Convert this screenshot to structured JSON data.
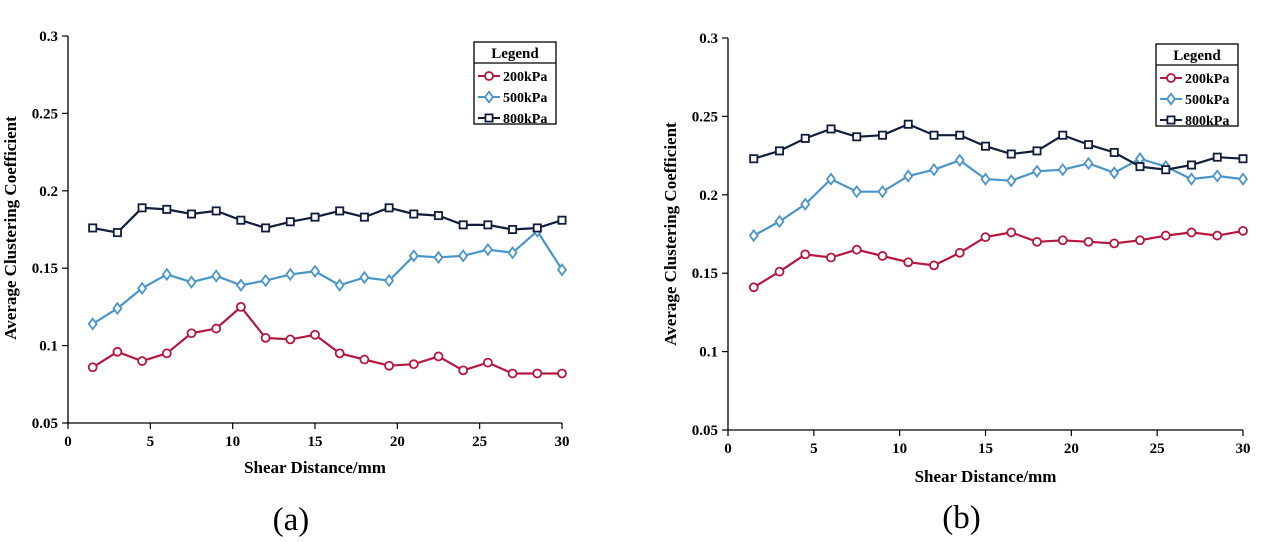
{
  "chart_data": [
    {
      "type": "line",
      "panel_label": "(a)",
      "xlabel": "Shear Distance/mm",
      "ylabel": "Average Clustering Coefficient",
      "xlim": [
        0,
        30
      ],
      "ylim": [
        0.05,
        0.3
      ],
      "x_ticks": [
        "0",
        "5",
        "10",
        "15",
        "20",
        "25",
        "30"
      ],
      "y_ticks": [
        "0.05",
        "0.1",
        "0.15",
        "0.2",
        "0.25",
        "0.3"
      ],
      "legend_title": "Legend",
      "legend_position": "top-right",
      "x": [
        1.5,
        3,
        4.5,
        6,
        7.5,
        9,
        10.5,
        12,
        13.5,
        15,
        16.5,
        18,
        19.5,
        21,
        22.5,
        24,
        25.5,
        27,
        28.5,
        30
      ],
      "series": [
        {
          "name": "200kPa",
          "color": "#b5183f",
          "marker": "circle",
          "values": [
            0.086,
            0.096,
            0.09,
            0.095,
            0.108,
            0.111,
            0.125,
            0.105,
            0.104,
            0.107,
            0.095,
            0.091,
            0.087,
            0.088,
            0.093,
            0.084,
            0.089,
            0.082,
            0.082,
            0.082
          ]
        },
        {
          "name": "500kPa",
          "color": "#4a95c8",
          "marker": "diamond",
          "values": [
            0.114,
            0.124,
            0.137,
            0.146,
            0.141,
            0.145,
            0.139,
            0.142,
            0.146,
            0.148,
            0.139,
            0.144,
            0.142,
            0.158,
            0.157,
            0.158,
            0.162,
            0.16,
            0.174,
            0.149
          ]
        },
        {
          "name": "800kPa",
          "color": "#101e3c",
          "marker": "square",
          "values": [
            0.176,
            0.173,
            0.189,
            0.188,
            0.185,
            0.187,
            0.181,
            0.176,
            0.18,
            0.183,
            0.187,
            0.183,
            0.189,
            0.185,
            0.184,
            0.178,
            0.178,
            0.175,
            0.176,
            0.181
          ]
        }
      ]
    },
    {
      "type": "line",
      "panel_label": "(b)",
      "xlabel": "Shear Distance/mm",
      "ylabel": "Average Clustering Coefficient",
      "xlim": [
        0,
        30
      ],
      "ylim": [
        0.05,
        0.3
      ],
      "x_ticks": [
        "0",
        "5",
        "10",
        "15",
        "20",
        "25",
        "30"
      ],
      "y_ticks": [
        "0.05",
        "0.1",
        "0.15",
        "0.2",
        "0.25",
        "0.3"
      ],
      "legend_title": "Legend",
      "legend_position": "top-right",
      "x": [
        1.5,
        3,
        4.5,
        6,
        7.5,
        9,
        10.5,
        12,
        13.5,
        15,
        16.5,
        18,
        19.5,
        21,
        22.5,
        24,
        25.5,
        27,
        28.5,
        30
      ],
      "series": [
        {
          "name": "200kPa",
          "color": "#b5183f",
          "marker": "circle",
          "values": [
            0.141,
            0.151,
            0.162,
            0.16,
            0.165,
            0.161,
            0.157,
            0.155,
            0.163,
            0.173,
            0.176,
            0.17,
            0.171,
            0.17,
            0.169,
            0.171,
            0.174,
            0.176,
            0.174,
            0.177
          ]
        },
        {
          "name": "500kPa",
          "color": "#4a95c8",
          "marker": "diamond",
          "values": [
            0.174,
            0.183,
            0.194,
            0.21,
            0.202,
            0.202,
            0.212,
            0.216,
            0.222,
            0.21,
            0.209,
            0.215,
            0.216,
            0.22,
            0.214,
            0.223,
            0.218,
            0.21,
            0.212,
            0.21
          ]
        },
        {
          "name": "800kPa",
          "color": "#101e3c",
          "marker": "square",
          "values": [
            0.223,
            0.228,
            0.236,
            0.242,
            0.237,
            0.238,
            0.245,
            0.238,
            0.238,
            0.231,
            0.226,
            0.228,
            0.238,
            0.232,
            0.227,
            0.218,
            0.216,
            0.219,
            0.224,
            0.223
          ]
        }
      ]
    }
  ]
}
